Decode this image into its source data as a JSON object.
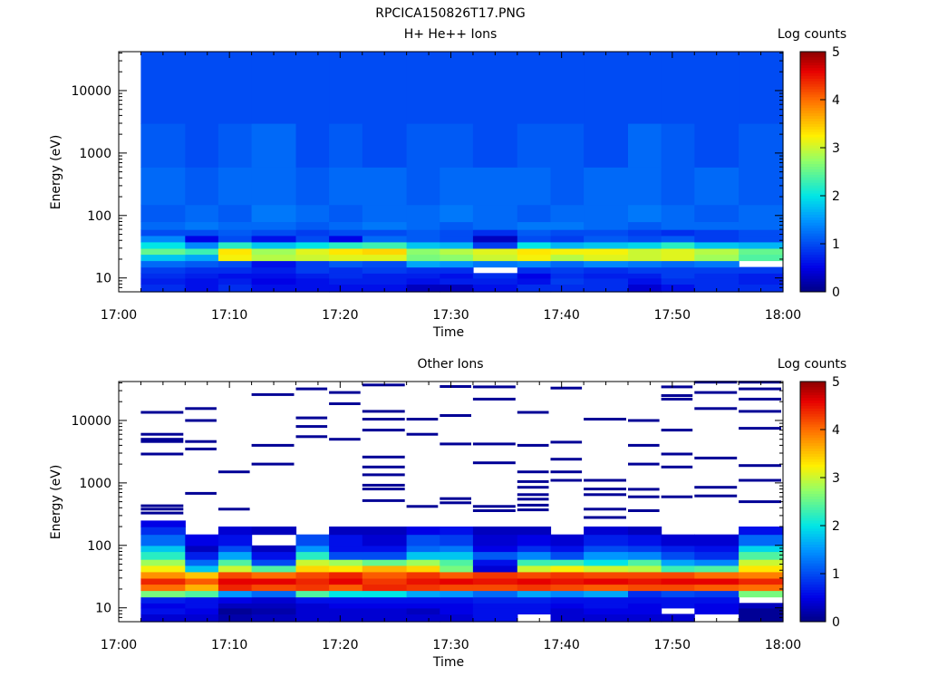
{
  "figure": {
    "title": "RPCICA150826T17.PNG"
  },
  "chart_data": [
    {
      "type": "heatmap",
      "title": "H+ He++ Ions",
      "xlabel": "Time",
      "ylabel": "Energy (eV)",
      "y_scale": "log",
      "xlim": [
        "17:00",
        "18:00"
      ],
      "ylim": [
        6,
        42000
      ],
      "x_ticks": [
        "17:00",
        "17:10",
        "17:20",
        "17:30",
        "17:40",
        "17:50",
        "18:00"
      ],
      "y_ticks": [
        "10",
        "100",
        "1000",
        "10000"
      ],
      "colorbar": {
        "label": "Log counts",
        "min": 0,
        "max": 5,
        "ticks": [
          "0",
          "1",
          "2",
          "3",
          "4",
          "5"
        ]
      },
      "time_bins_start": [
        "17:02",
        "17:06",
        "17:09",
        "17:12",
        "17:16",
        "17:19",
        "17:22",
        "17:26",
        "17:29",
        "17:32",
        "17:36",
        "17:39",
        "17:42",
        "17:46",
        "17:49",
        "17:52",
        "17:56"
      ],
      "time_bins_end": "18:00",
      "energy_band_edges": [
        6,
        8,
        10,
        12,
        15,
        19,
        24,
        30,
        38,
        48,
        60,
        80,
        150,
        600,
        3000,
        42000
      ],
      "log_counts": [
        [
          0.8,
          0.6,
          0.8,
          0.6,
          0.6,
          0.6,
          0.6,
          0.3,
          0.3,
          0.6,
          0.8,
          0.8,
          0.8,
          0.4,
          0.6,
          0.8,
          0.8
        ],
        [
          0.7,
          0.6,
          0.7,
          0.5,
          0.6,
          0.7,
          0.7,
          0.6,
          0.7,
          0.7,
          0.6,
          0.9,
          0.8,
          0.6,
          0.8,
          0.8,
          0.7
        ],
        [
          0.8,
          0.7,
          0.6,
          0.6,
          0.7,
          0.8,
          0.7,
          0.7,
          0.6,
          0.8,
          0.5,
          0.8,
          0.7,
          0.7,
          0.9,
          0.8,
          0.7
        ],
        [
          0.9,
          0.8,
          0.8,
          0.7,
          0.9,
          0.8,
          0.9,
          0.8,
          0.8,
          null,
          0.8,
          0.9,
          0.8,
          0.9,
          0.9,
          0.9,
          0.9
        ],
        [
          1.2,
          1.1,
          1.0,
          0.6,
          0.9,
          1.1,
          1.0,
          1.6,
          1.5,
          1.3,
          1.4,
          1.2,
          1.4,
          1.3,
          1.2,
          1.3,
          null
        ],
        [
          1.8,
          1.6,
          3.2,
          2.9,
          3.0,
          3.1,
          3.1,
          2.6,
          2.7,
          3.0,
          3.2,
          2.9,
          3.1,
          3.0,
          3.1,
          2.8,
          2.4
        ],
        [
          2.5,
          2.3,
          3.3,
          2.8,
          3.1,
          3.3,
          3.4,
          2.7,
          2.9,
          3.1,
          3.3,
          3.2,
          3.2,
          3.0,
          3.1,
          2.9,
          2.5
        ],
        [
          2.0,
          1.4,
          2.2,
          1.8,
          2.0,
          2.2,
          2.3,
          1.8,
          1.7,
          0.9,
          2.0,
          1.7,
          1.8,
          1.9,
          2.2,
          1.8,
          1.7
        ],
        [
          1.4,
          0.5,
          1.0,
          0.6,
          1.0,
          0.5,
          1.2,
          1.1,
          1.0,
          0.3,
          1.0,
          0.9,
          1.1,
          1.0,
          1.1,
          0.9,
          1.0
        ],
        [
          1.0,
          1.0,
          1.1,
          1.0,
          0.9,
          1.0,
          1.0,
          1.1,
          1.0,
          0.8,
          1.1,
          1.0,
          1.0,
          0.9,
          0.8,
          0.9,
          1.0
        ],
        [
          1.2,
          1.3,
          1.2,
          1.2,
          1.1,
          1.2,
          1.3,
          1.2,
          1.1,
          1.2,
          1.3,
          1.3,
          1.2,
          1.1,
          1.2,
          1.2,
          1.2
        ],
        [
          1.1,
          1.2,
          1.1,
          1.3,
          1.2,
          1.1,
          1.2,
          1.2,
          1.3,
          1.2,
          1.1,
          1.2,
          1.2,
          1.3,
          1.2,
          1.1,
          1.2
        ],
        [
          1.2,
          1.1,
          1.2,
          1.2,
          1.1,
          1.2,
          1.2,
          1.1,
          1.2,
          1.2,
          1.2,
          1.1,
          1.2,
          1.2,
          1.1,
          1.2,
          1.1
        ],
        [
          1.1,
          1.0,
          1.1,
          1.2,
          1.0,
          1.1,
          1.0,
          1.1,
          1.1,
          1.0,
          1.1,
          1.1,
          1.0,
          1.2,
          1.1,
          1.0,
          1.1
        ],
        [
          1.0,
          1.0,
          1.0,
          1.0,
          1.0,
          1.0,
          1.0,
          1.0,
          1.0,
          1.0,
          1.0,
          1.0,
          1.0,
          1.0,
          1.0,
          1.0,
          1.0
        ]
      ]
    },
    {
      "type": "heatmap",
      "title": "Other Ions",
      "xlabel": "Time",
      "ylabel": "Energy (eV)",
      "y_scale": "log",
      "xlim": [
        "17:00",
        "18:00"
      ],
      "ylim": [
        6,
        42000
      ],
      "x_ticks": [
        "17:00",
        "17:10",
        "17:20",
        "17:30",
        "17:40",
        "17:50",
        "18:00"
      ],
      "y_ticks": [
        "10",
        "100",
        "1000",
        "10000"
      ],
      "colorbar": {
        "label": "Log counts",
        "min": 0,
        "max": 5,
        "ticks": [
          "0",
          "1",
          "2",
          "3",
          "4",
          "5"
        ]
      },
      "time_bins_start": [
        "17:02",
        "17:06",
        "17:09",
        "17:12",
        "17:16",
        "17:19",
        "17:22",
        "17:26",
        "17:29",
        "17:32",
        "17:36",
        "17:39",
        "17:42",
        "17:46",
        "17:49",
        "17:52",
        "17:56"
      ],
      "time_bins_end": "18:00",
      "energy_band_edges": [
        6,
        8,
        10,
        12,
        15,
        19,
        24,
        30,
        38,
        48,
        60,
        80,
        100,
        150,
        200,
        250
      ],
      "log_counts": [
        [
          0.4,
          0.4,
          0.2,
          0.3,
          0.4,
          0.4,
          0.4,
          0.4,
          0.4,
          0.6,
          null,
          0.4,
          0.4,
          0.4,
          0.4,
          null,
          0.1
        ],
        [
          0.6,
          0.5,
          0.1,
          0.2,
          0.4,
          0.4,
          0.4,
          0.3,
          0.5,
          0.6,
          0.6,
          0.4,
          0.5,
          0.5,
          null,
          0.5,
          0.1
        ],
        [
          0.5,
          0.6,
          0.3,
          0.3,
          0.4,
          0.5,
          0.5,
          0.5,
          0.5,
          0.6,
          0.6,
          0.5,
          0.6,
          0.5,
          0.6,
          0.5,
          0.3
        ],
        [
          0.7,
          0.6,
          0.5,
          0.4,
          0.6,
          0.6,
          0.6,
          0.6,
          0.6,
          0.7,
          0.7,
          0.6,
          0.6,
          0.6,
          0.6,
          0.6,
          null
        ],
        [
          2.6,
          2.4,
          1.5,
          1.2,
          2.4,
          2.0,
          2.0,
          1.6,
          1.5,
          1.2,
          1.6,
          1.4,
          1.6,
          0.8,
          1.0,
          0.9,
          2.6
        ],
        [
          4.0,
          3.6,
          4.4,
          4.2,
          4.3,
          4.1,
          4.4,
          4.3,
          4.2,
          4.2,
          4.3,
          4.2,
          4.1,
          4.2,
          4.2,
          4.1,
          4.0
        ],
        [
          4.4,
          4.1,
          4.6,
          4.6,
          4.4,
          4.6,
          4.3,
          4.5,
          4.6,
          4.5,
          4.6,
          4.5,
          4.6,
          4.5,
          4.6,
          4.6,
          4.4
        ],
        [
          3.8,
          3.5,
          4.2,
          4.0,
          4.2,
          4.4,
          4.1,
          4.3,
          4.1,
          4.3,
          4.2,
          4.3,
          4.2,
          4.2,
          4.2,
          4.0,
          3.9
        ],
        [
          3.2,
          1.8,
          3.0,
          2.4,
          3.4,
          3.3,
          3.6,
          3.4,
          2.6,
          0.4,
          3.0,
          3.2,
          3.0,
          2.9,
          2.3,
          2.4,
          3.3
        ],
        [
          2.8,
          1.2,
          2.4,
          1.0,
          3.0,
          2.8,
          2.5,
          2.8,
          2.4,
          0.6,
          2.3,
          2.3,
          2.0,
          2.4,
          1.6,
          1.4,
          3.0
        ],
        [
          2.2,
          0.7,
          1.6,
          0.6,
          2.2,
          1.0,
          1.0,
          1.8,
          1.8,
          1.1,
          1.4,
          1.0,
          1.5,
          1.4,
          1.0,
          0.8,
          2.4
        ],
        [
          1.8,
          0.3,
          1.0,
          0.3,
          1.5,
          0.6,
          0.6,
          1.2,
          1.3,
          0.5,
          0.8,
          0.6,
          1.0,
          0.9,
          0.7,
          0.6,
          1.9
        ],
        [
          1.2,
          0.5,
          0.6,
          null,
          1.0,
          0.6,
          0.4,
          1.0,
          0.9,
          0.4,
          0.5,
          0.4,
          0.7,
          0.6,
          0.4,
          0.4,
          1.2
        ],
        [
          0.8,
          null,
          0.4,
          0.3,
          null,
          0.3,
          0.3,
          0.5,
          0.6,
          0.3,
          0.3,
          null,
          0.4,
          0.3,
          null,
          null,
          0.6
        ],
        [
          0.5,
          null,
          null,
          null,
          null,
          null,
          null,
          null,
          null,
          null,
          null,
          null,
          null,
          null,
          null,
          null,
          null
        ]
      ],
      "sparse_events_eV": [
        [
          430,
          380,
          330,
          6000,
          5000,
          4600,
          2900,
          13500
        ],
        [
          680,
          3500,
          4600,
          10000,
          15500
        ],
        [
          380,
          1500
        ],
        [
          2000,
          4000,
          26000
        ],
        [
          5500,
          8000,
          11000,
          32000
        ],
        [
          5000,
          18500,
          28000
        ],
        [
          520,
          800,
          920,
          1350,
          1800,
          2600,
          7000,
          10500,
          14000,
          37000
        ],
        [
          420,
          6000,
          10500
        ],
        [
          480,
          560,
          4200,
          12000,
          35000
        ],
        [
          360,
          420,
          2100,
          4200,
          22000,
          34500
        ],
        [
          370,
          440,
          550,
          650,
          850,
          1050,
          1500,
          4000,
          13500
        ],
        [
          1100,
          1500,
          2400,
          4500,
          33000
        ],
        [
          280,
          380,
          650,
          800,
          1100,
          10500
        ],
        [
          360,
          600,
          790,
          2000,
          4000,
          10000
        ],
        [
          600,
          1800,
          2900,
          7000,
          22000,
          25000,
          34500
        ],
        [
          620,
          850,
          2500,
          15500,
          28000,
          41000
        ],
        [
          500,
          1100,
          1900,
          7500,
          14000,
          22000,
          32000,
          41000
        ]
      ]
    }
  ]
}
